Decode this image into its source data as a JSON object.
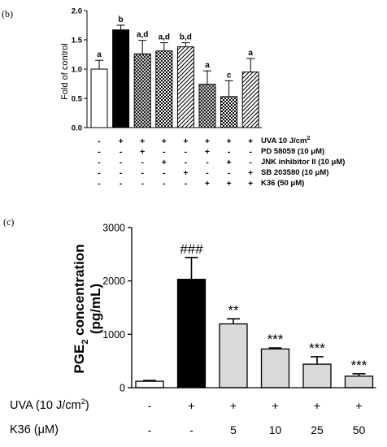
{
  "chart_data": [
    {
      "panel": "(b)",
      "type": "bar",
      "ylabel": "Fold of control",
      "ylim": [
        0,
        2.0
      ],
      "yticks": [
        "0.0",
        "0.5",
        "1.0",
        "1.5",
        "2.0"
      ],
      "bars": [
        {
          "value": 1.0,
          "err": 0.15,
          "letter": "a",
          "fill": "white"
        },
        {
          "value": 1.67,
          "err": 0.08,
          "letter": "b",
          "fill": "black"
        },
        {
          "value": 1.26,
          "err": 0.23,
          "letter": "a,d",
          "fill": "hatch-cross"
        },
        {
          "value": 1.31,
          "err": 0.14,
          "letter": "a,d",
          "fill": "checker"
        },
        {
          "value": 1.38,
          "err": 0.07,
          "letter": "b,d",
          "fill": "diagonal"
        },
        {
          "value": 0.74,
          "err": 0.23,
          "letter": "a",
          "fill": "hatch-cross"
        },
        {
          "value": 0.53,
          "err": 0.27,
          "letter": "c",
          "fill": "checker"
        },
        {
          "value": 0.95,
          "err": 0.23,
          "letter": "a",
          "fill": "diagonal"
        }
      ],
      "treatment_rows": [
        {
          "label": "UVA 10 J/cm",
          "sup": "2",
          "marks": [
            "-",
            "+",
            "+",
            "+",
            "+",
            "+",
            "+",
            "+"
          ]
        },
        {
          "label": "PD 58059 (10 μM)",
          "marks": [
            "-",
            "-",
            "+",
            "-",
            "-",
            "+",
            "-",
            "-"
          ]
        },
        {
          "label": "JNK inhibitor II (10 μM)",
          "marks": [
            "-",
            "-",
            "-",
            "+",
            "-",
            "-",
            "+",
            "-"
          ]
        },
        {
          "label": "SB 203580 (10 μM)",
          "marks": [
            "-",
            "-",
            "-",
            "-",
            "+",
            "-",
            "-",
            "+"
          ]
        },
        {
          "label": "K36 (50 μM)",
          "marks": [
            "-",
            "-",
            "-",
            "-",
            "-",
            "+",
            "+",
            "+"
          ]
        }
      ]
    },
    {
      "panel": "(c)",
      "type": "bar",
      "ylabel": {
        "pre": "PGE",
        "sub": "2",
        "post": " concentration",
        "line2": "(pg/mL)"
      },
      "ylim": [
        0,
        3000
      ],
      "yticks": [
        "0",
        "1000",
        "2000",
        "3000"
      ],
      "bars": [
        {
          "value": 120,
          "err": 15,
          "label": "",
          "fill": "white"
        },
        {
          "value": 2030,
          "err": 410,
          "label": "###",
          "fill": "black"
        },
        {
          "value": 1195,
          "err": 95,
          "label": "**",
          "fill": "lightgray"
        },
        {
          "value": 725,
          "err": 20,
          "label": "***",
          "fill": "lightgray"
        },
        {
          "value": 440,
          "err": 140,
          "label": "***",
          "fill": "lightgray"
        },
        {
          "value": 215,
          "err": 45,
          "label": "***",
          "fill": "lightgray"
        }
      ],
      "treatment_rows": [
        {
          "label": "UVA (10 J/cm",
          "sup": "2",
          "label_end": ")",
          "marks": [
            "-",
            "+",
            "+",
            "+",
            "+",
            "+"
          ]
        },
        {
          "label": "K36 (μM)",
          "marks": [
            "-",
            "-",
            "5",
            "10",
            "25",
            "50"
          ]
        }
      ]
    }
  ],
  "colors": {
    "black": "#000000",
    "white": "#ffffff",
    "lightgray": "#d9d9d9",
    "axis": "#000000"
  }
}
